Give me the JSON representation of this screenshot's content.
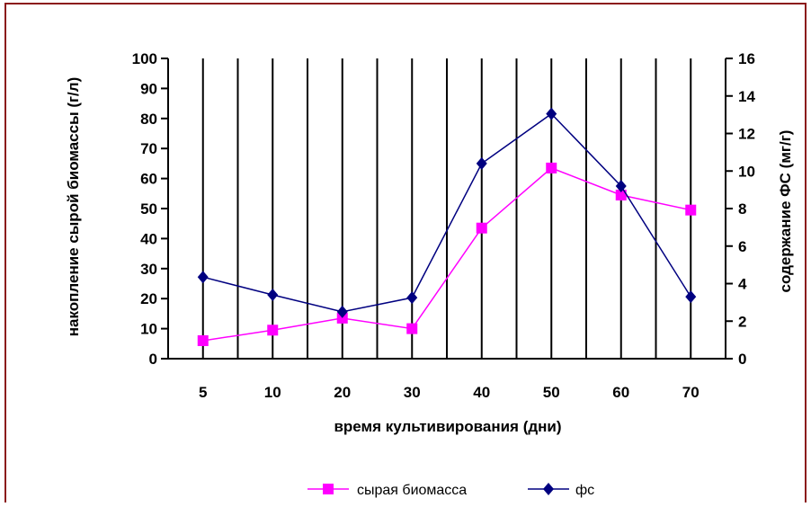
{
  "chart_data": {
    "type": "line",
    "categories": [
      "5",
      "10",
      "20",
      "30",
      "40",
      "50",
      "60",
      "70"
    ],
    "xlabel": "время культивирования  (дни)",
    "ylabel_left": "накопление сырой биомассы (г/л)",
    "ylabel_right": "содержание ФС (мг/г)",
    "ylim_left": [
      0,
      100
    ],
    "ylim_right": [
      0,
      16
    ],
    "yticks_left": [
      "0",
      "10",
      "20",
      "30",
      "40",
      "50",
      "60",
      "70",
      "80",
      "90",
      "100"
    ],
    "yticks_right": [
      "0",
      "2",
      "4",
      "6",
      "8",
      "10",
      "12",
      "14",
      "16"
    ],
    "grid": "vertical",
    "legend_position": "bottom",
    "series": [
      {
        "name": "сырая биомасса",
        "axis": "left",
        "color": "#ff00ff",
        "marker": "square",
        "values": [
          6,
          9.5,
          13.5,
          10,
          43.5,
          63.5,
          54.5,
          49.5
        ]
      },
      {
        "name": "фс",
        "axis": "right",
        "color": "#000080",
        "marker": "diamond",
        "values": [
          4.35,
          3.4,
          2.5,
          3.25,
          10.4,
          13.05,
          9.2,
          3.3
        ]
      }
    ]
  }
}
